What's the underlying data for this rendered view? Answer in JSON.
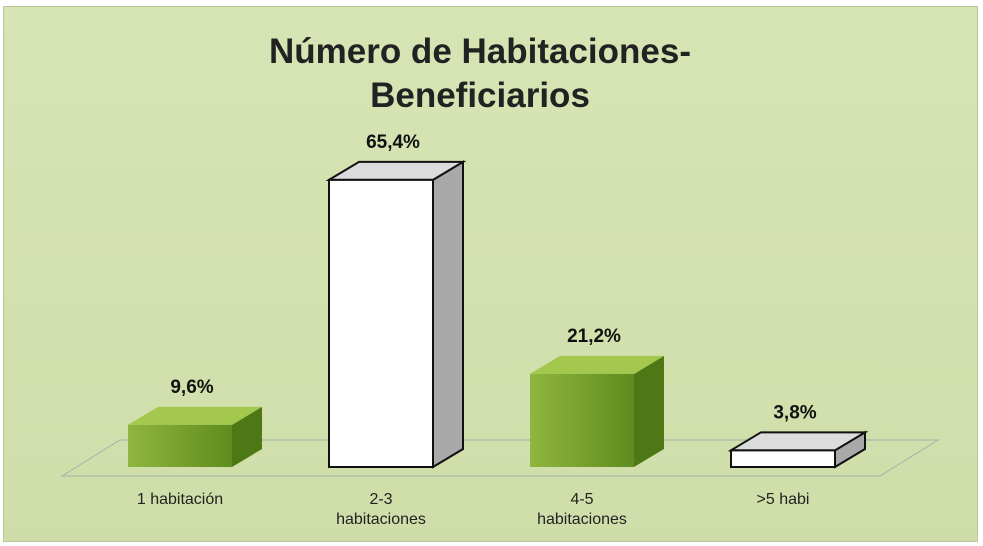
{
  "chart_data": {
    "type": "bar3d",
    "title": "Número de Habitaciones-Beneficiarios",
    "categories": [
      "1 habitación",
      "2-3 habitaciones",
      "4-5 habitaciones",
      ">5 habi"
    ],
    "values": [
      9.6,
      65.4,
      21.2,
      3.8
    ],
    "value_labels": [
      "9,6%",
      "65,4%",
      "21,2%",
      "3,8%"
    ],
    "colors": [
      "green",
      "white",
      "green",
      "white"
    ]
  }
}
